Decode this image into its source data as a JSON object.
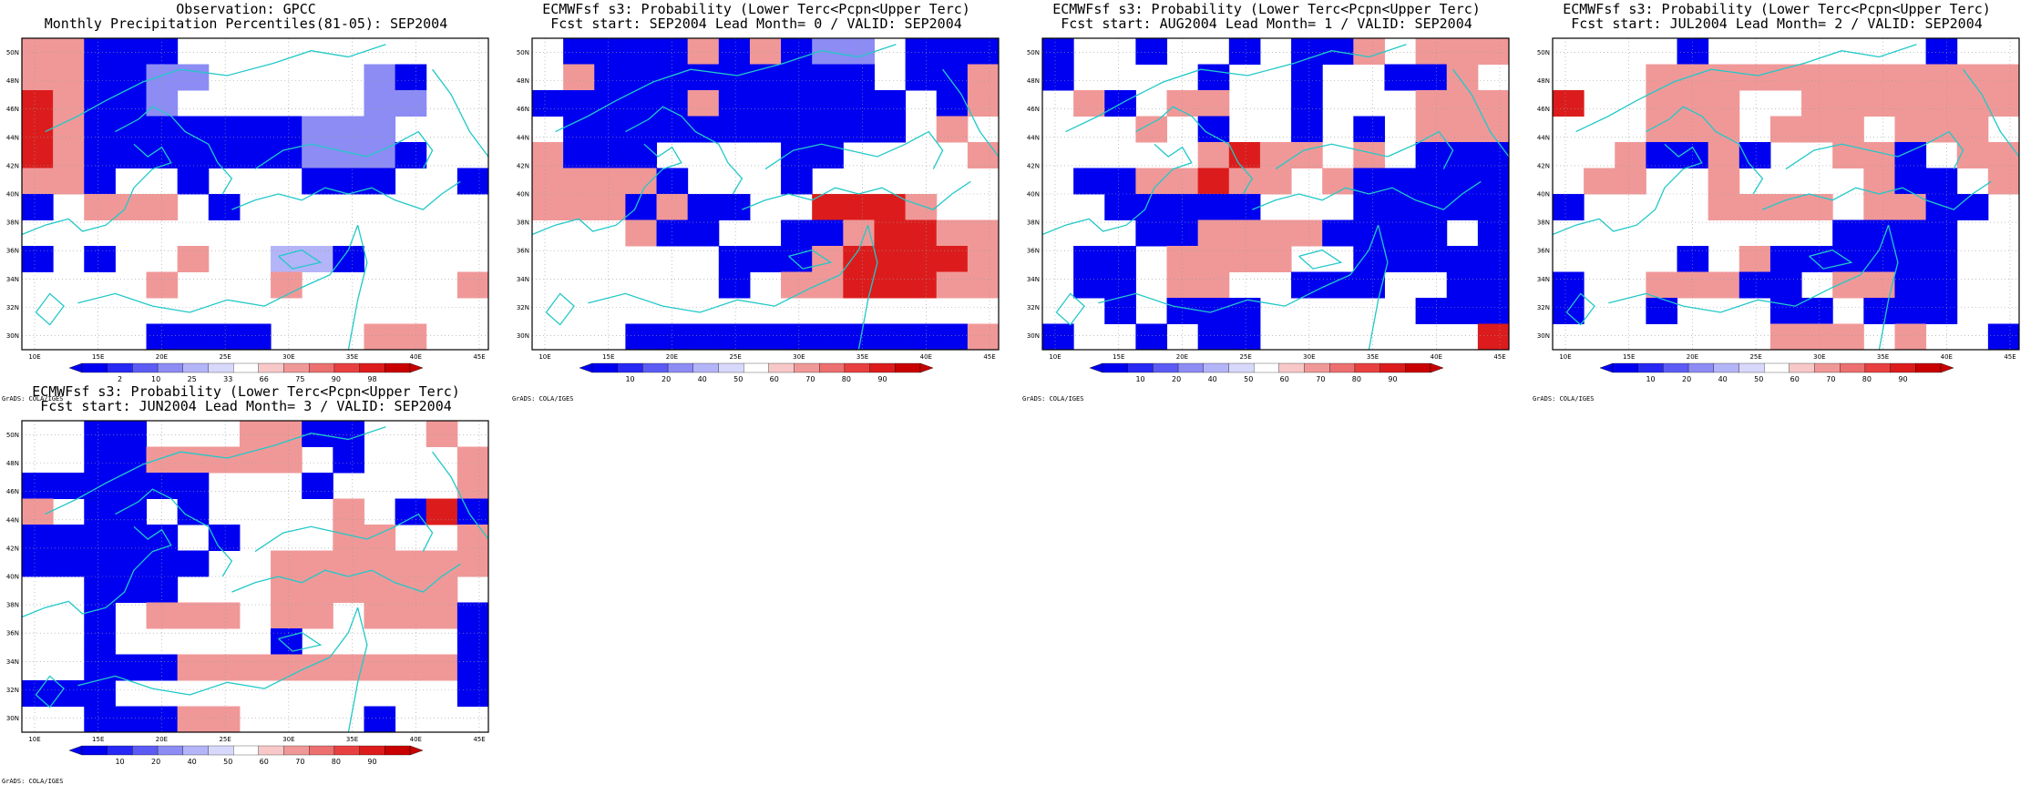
{
  "colors": {
    "coast": "#22c8c8",
    "grid": "#9a9a9a",
    "blue_scale": [
      "#0000f0",
      "#2828f4",
      "#5c5cf4",
      "#8c8cf4",
      "#b4b4f8",
      "#d8d8fc"
    ],
    "red_scale": [
      "#f8c8c8",
      "#f09898",
      "#ec7070",
      "#e84040",
      "#dc1c1c",
      "#c80000"
    ]
  },
  "axes": {
    "lat_labels": [
      "30N",
      "32N",
      "34N",
      "36N",
      "38N",
      "40N",
      "42N",
      "44N",
      "46N",
      "48N",
      "50N"
    ],
    "lon_labels": [
      "10E",
      "15E",
      "20E",
      "25E",
      "30E",
      "35E",
      "40E",
      "45E"
    ],
    "lat_range": [
      30,
      51
    ],
    "lon_range": [
      8,
      46
    ]
  },
  "credit": "GrADS: COLA/IGES",
  "panels": [
    {
      "title1": "Observation: GPCC",
      "title2": "Monthly Precipitation Percentiles(81-05): SEP2004",
      "colorbar_labels": [
        "2",
        "10",
        "25",
        "33",
        "66",
        "75",
        "90",
        "98"
      ],
      "grid": [
        "rrbbb..........",
        "rrbbBB.....Bb..",
        "RrbbB......BB..",
        "RrbbbbbbbBBB...",
        "RrbbbbbbbBBBb..",
        "rrb..b...bbb..b",
        "b.rrr.b........",
        "...........",
        "b.b..r..ddb....",
        "....r...r.....r",
        "...............",
        "....bbbb...rr.."
      ]
    },
    {
      "title1": "ECMWFsf s3: Probability (Lower Terc<Pcpn<Upper Terc)",
      "title2": "Fcst start: SEP2004   Lead Month= 0 / VALID: SEP2004",
      "colorbar_labels": [
        "10",
        "20",
        "40",
        "50",
        "60",
        "70",
        "80",
        "90"
      ],
      "grid": [
        ".bbbbrbrbBB.bbb",
        ".rbbbbbbbbb.bbr",
        "bbbbbrbbbbbb.br",
        ".bbbbbbbbbbb.r.",
        "rbbb....bb....r",
        "rrrrb...b......",
        "rrrbrbb..RRRr..",
        "...rbb..bbrRRrr",
        "......bbbrRRRRr",
        "......b.rrRRRrr",
        "...............",
        "...bbbbbbbbbbbr"
      ]
    },
    {
      "title1": "ECMWFsf s3: Probability (Lower Terc<Pcpn<Upper Terc)",
      "title2": "Fcst start: AUG2004   Lead Month= 1 / VALID: SEP2004",
      "colorbar_labels": [
        "10",
        "20",
        "40",
        "50",
        "60",
        "70",
        "80",
        "90"
      ],
      "grid": [
        "b..b..b.bbr.rrr",
        "b....b..b..bbr.",
        ".rb.rr..b...rrr",
        "...r.b..b.b.rrr",
        ".....rRrr.r.bbb",
        ".bbrrRrr.rbbbbb",
        "..bbbbb...bbbbb",
        "...bbrrrrbbbb.b",
        ".bb.rrrr..bbbbb",
        ".bb.rr..bbb..bb",
        "..b.bbb.....bbb",
        "b..b.bb.......R"
      ]
    },
    {
      "title1": "ECMWFsf s3: Probability (Lower Terc<Pcpn<Upper Terc)",
      "title2": "Fcst start: JUL2004   Lead Month= 2 / VALID: SEP2004",
      "colorbar_labels": [
        "10",
        "20",
        "40",
        "50",
        "60",
        "70",
        "80",
        "90"
      ],
      "grid": [
        "....b.......b..",
        "...rrrrrrrrrrrr",
        "R..rrr..rrrrrrr",
        "...rrr.rrr.rrr.",
        "..rbbrb..rrb.rr",
        ".rr..r....rbb.r",
        "b....rrrr.rrbb.",
        ".........bbbb..",
        "....b.rbbbbbb..",
        "b..rrrbb.rrbb..",
        "b..b...bb.bbb..",
        ".......rrr.r..b"
      ]
    },
    {
      "title1": "ECMWFsf s3: Probability (Lower Terc<Pcpn<Upper Terc)",
      "title2": "Fcst start: JUN2004   Lead Month= 3 / VALID: SEP2004",
      "colorbar_labels": [
        "10",
        "20",
        "40",
        "50",
        "60",
        "70",
        "80",
        "90"
      ],
      "grid": [
        "..bb...rrbb..r.",
        "..bbrrrrr.b...r",
        "bbbbbb...b....r",
        "r.bb.b....r.bRb",
        "bbbbb.b...rr..r",
        "bbbbbb..rrrrrrr",
        "..bbb...rrrrrr.",
        "..b.rrr.rr.rrrb",
        "..b.....b.....b",
        "..bbbrrrrrrrrrb",
        "bbb...........b",
        "..bbbrr....b..."
      ]
    }
  ]
}
